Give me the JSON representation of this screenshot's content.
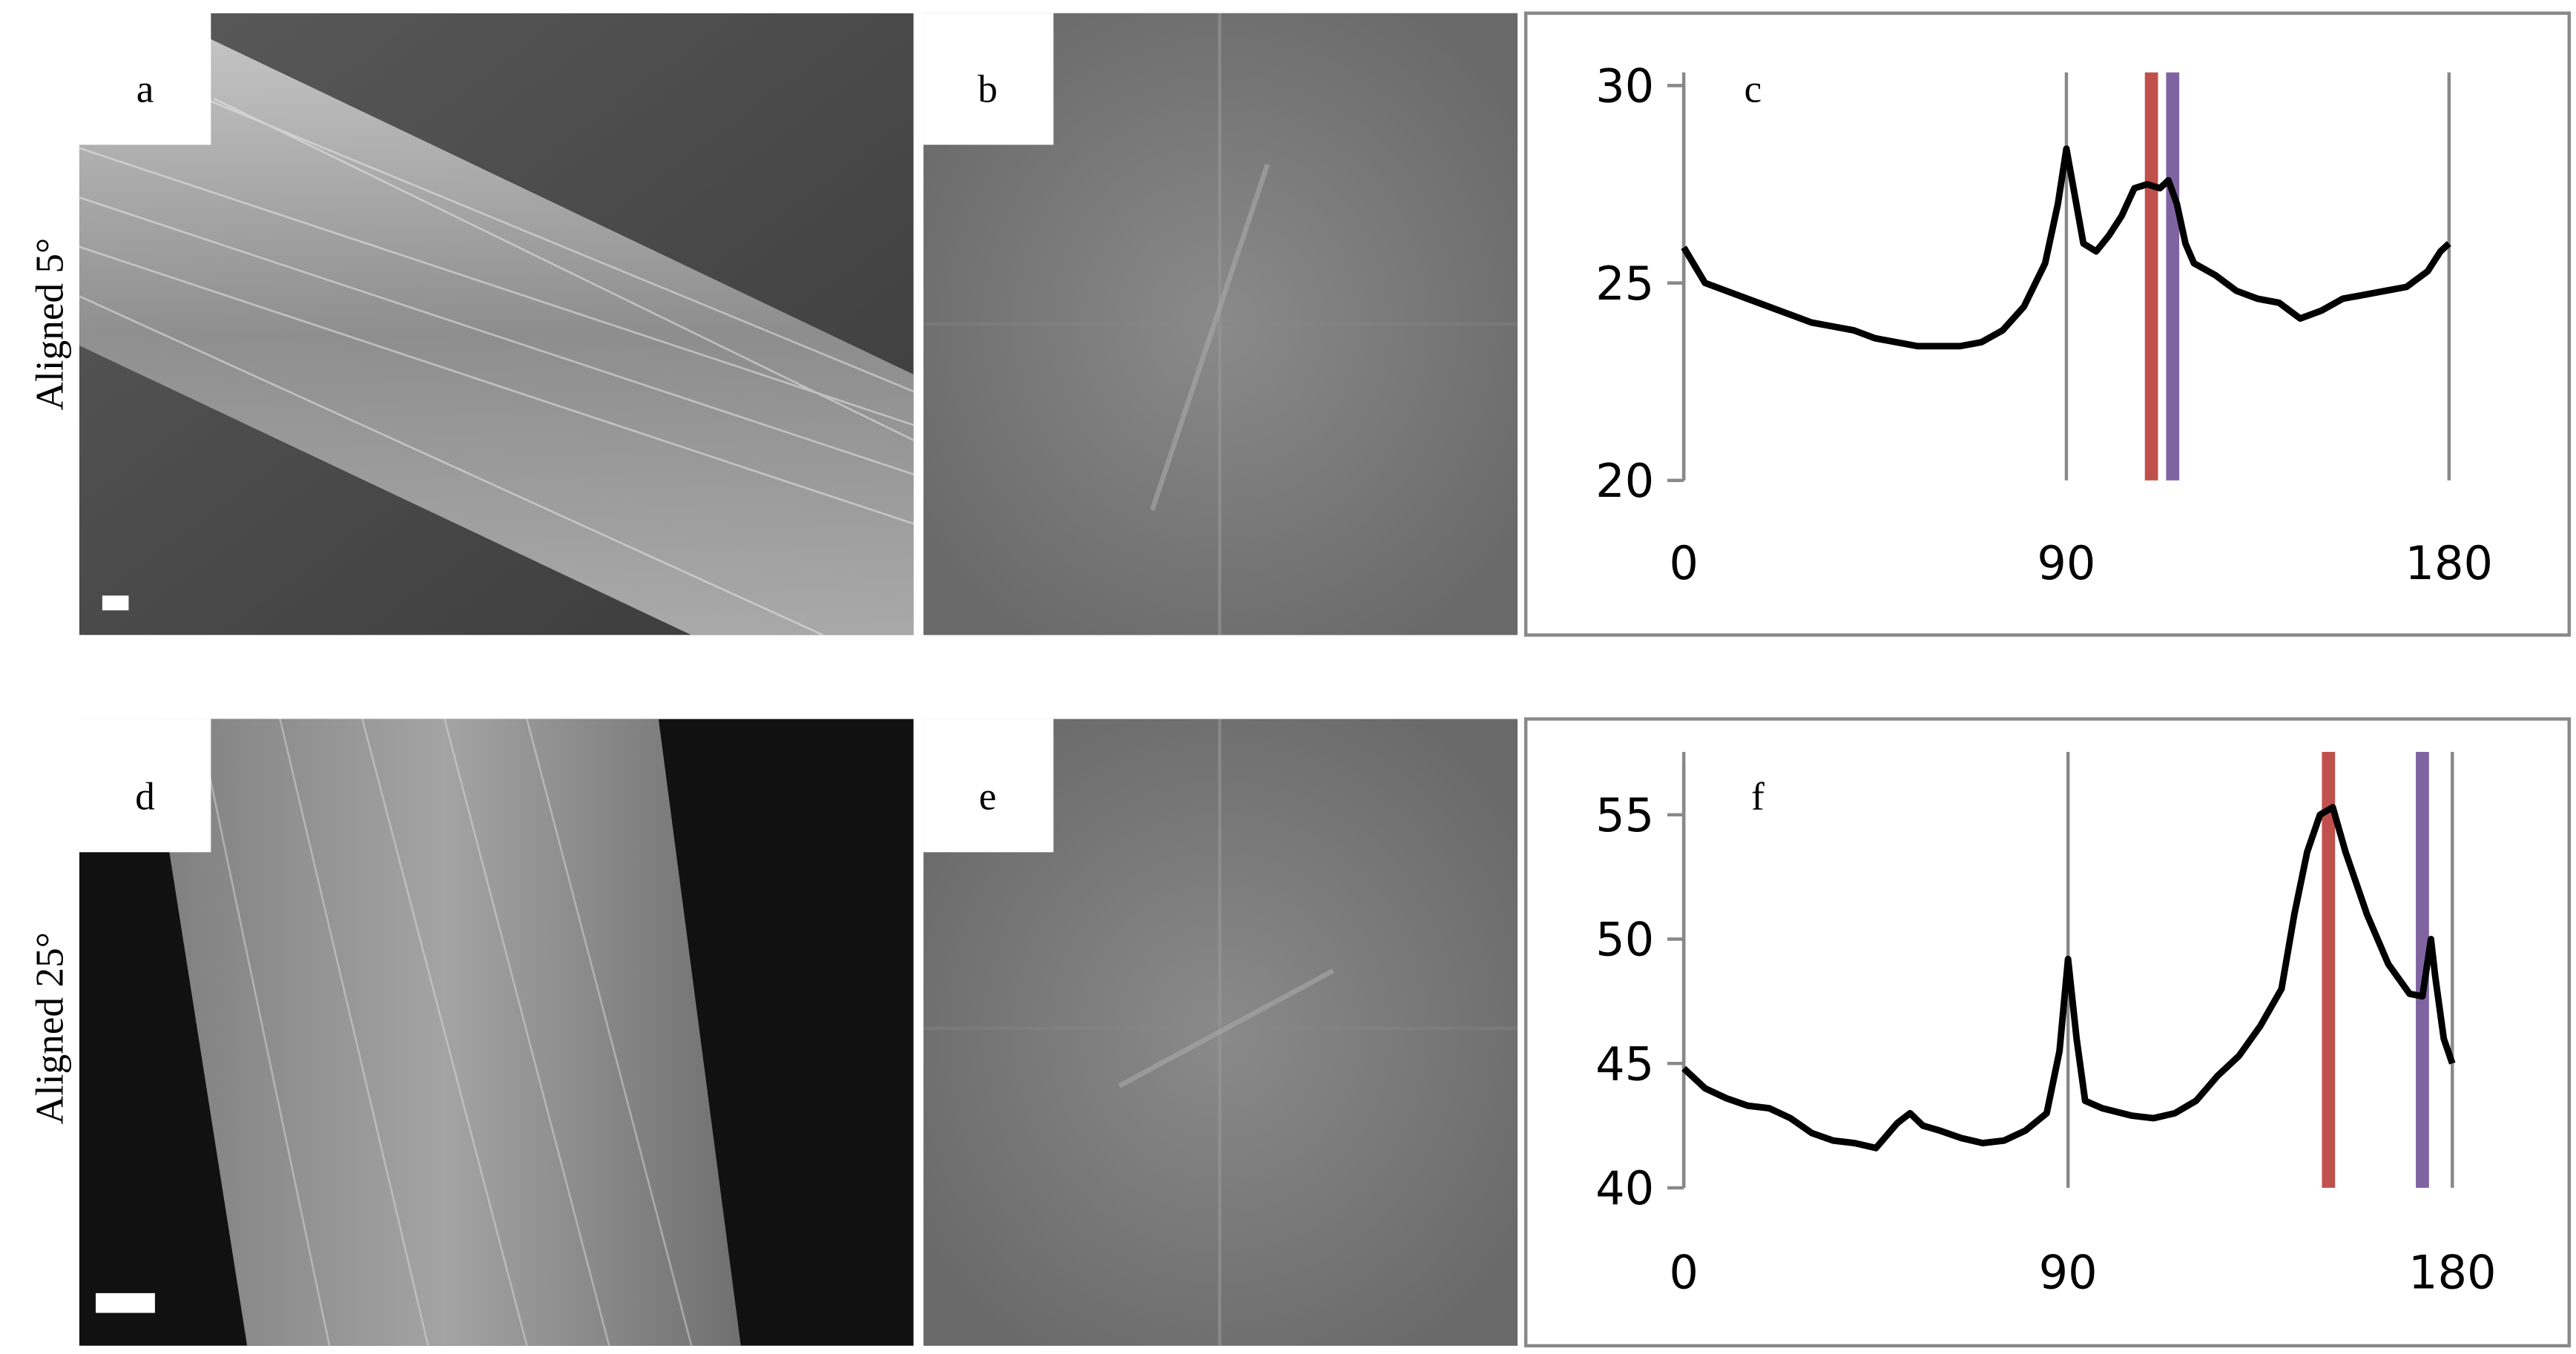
{
  "rows": [
    "Aligned 5°",
    "Aligned 25°"
  ],
  "panels": [
    "a",
    "b",
    "d",
    "e"
  ],
  "chart_data": [
    {
      "type": "line",
      "title": "c",
      "x": [
        0,
        5,
        10,
        15,
        20,
        25,
        30,
        35,
        40,
        45,
        50,
        55,
        60,
        65,
        70,
        75,
        80,
        85,
        88,
        90,
        92,
        94,
        97,
        100,
        103,
        106,
        109,
        112,
        114,
        116,
        118,
        120,
        125,
        130,
        135,
        140,
        145,
        150,
        155,
        160,
        165,
        170,
        175,
        178,
        180
      ],
      "series": [
        {
          "color": "#000000",
          "values": [
            25.9,
            25.0,
            24.8,
            24.6,
            24.4,
            24.2,
            24.0,
            23.9,
            23.8,
            23.6,
            23.5,
            23.4,
            23.4,
            23.4,
            23.5,
            23.8,
            24.4,
            25.5,
            27.0,
            28.4,
            27.2,
            26.0,
            25.8,
            26.2,
            26.7,
            27.4,
            27.5,
            27.4,
            27.6,
            27.0,
            26.0,
            25.5,
            25.2,
            24.8,
            24.6,
            24.5,
            24.1,
            24.3,
            24.6,
            24.7,
            24.8,
            24.9,
            25.3,
            25.8,
            26.0
          ]
        }
      ],
      "markers": [
        {
          "x": 110,
          "color": "#c0504d"
        },
        {
          "x": 115,
          "color": "#8064a2"
        }
      ],
      "xlim": [
        0,
        180
      ],
      "xticks": [
        0,
        90,
        180
      ],
      "ylim": [
        20,
        30
      ],
      "yticks": [
        20,
        25,
        30
      ],
      "grid": true
    },
    {
      "type": "line",
      "title": "f",
      "x": [
        0,
        5,
        10,
        15,
        20,
        25,
        30,
        35,
        40,
        45,
        50,
        53,
        56,
        60,
        65,
        70,
        75,
        80,
        85,
        88,
        90,
        92,
        94,
        98,
        105,
        110,
        115,
        120,
        125,
        130,
        135,
        140,
        143,
        146,
        149,
        152,
        155,
        160,
        165,
        170,
        173,
        175,
        176,
        178,
        180
      ],
      "series": [
        {
          "color": "#000000",
          "values": [
            44.8,
            44.0,
            43.6,
            43.3,
            43.2,
            42.8,
            42.2,
            41.9,
            41.8,
            41.6,
            42.6,
            43.0,
            42.5,
            42.3,
            42.0,
            41.8,
            41.9,
            42.3,
            43.0,
            45.5,
            49.2,
            46.0,
            43.5,
            43.2,
            42.9,
            42.8,
            43.0,
            43.5,
            44.5,
            45.3,
            46.5,
            48.0,
            51.0,
            53.5,
            55.0,
            55.3,
            53.5,
            51.0,
            49.0,
            47.8,
            47.7,
            50.0,
            48.5,
            46.0,
            45.0
          ]
        }
      ],
      "markers": [
        {
          "x": 151,
          "color": "#c0504d"
        },
        {
          "x": 173,
          "color": "#8064a2"
        }
      ],
      "xlim": [
        0,
        180
      ],
      "xticks": [
        0,
        90,
        180
      ],
      "ylim": [
        40,
        57
      ],
      "yticks": [
        40,
        45,
        50,
        55
      ],
      "grid": true
    }
  ]
}
